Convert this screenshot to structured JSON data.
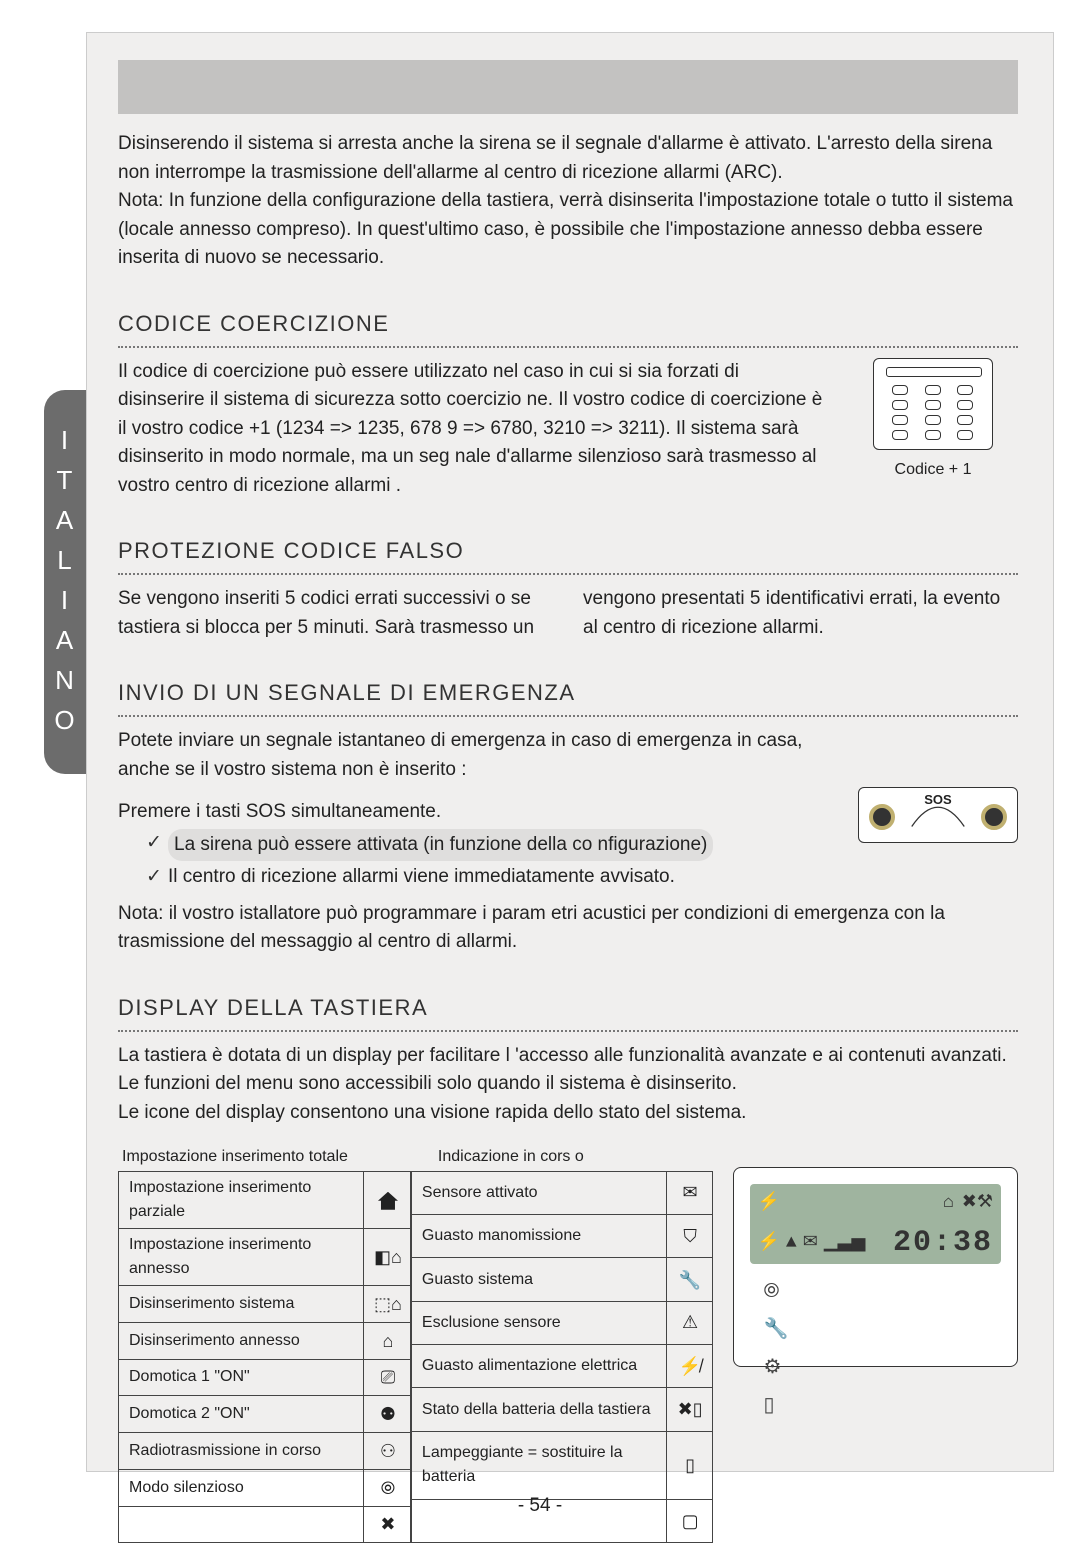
{
  "side_tab_letters": [
    "I",
    "T",
    "A",
    "L",
    "I",
    "A",
    "N",
    "O"
  ],
  "intro_para": "Disinserendo il sistema si arresta anche la sirena se il segnale d'allarme è attivato. L'arresto della sirena non interrompe la trasmissione dell'allarme al centro di ricezione allarmi (ARC).\nNota: In funzione della configurazione della tastiera, verrà disinserita l'impostazione totale o tutto il sistema (locale annesso compreso). In quest'ultimo caso, è possibile che l'impostazione annesso debba essere inserita di nuovo se necessario.",
  "sections": {
    "coercizione": {
      "title": "CODICE COERCIZIONE",
      "body": "Il codice di coercizione può essere utilizzato nel caso in cui si sia forzati di disinserire il sistema di sicurezza sotto coercizio ne. Il vostro codice di coercizione è il vostro codice +1 (1234 => 1235, 678 9 => 6780, 3210 => 3211). Il sistema sarà disinserito in modo normale, ma un seg nale d'allarme silenzioso sarà trasmesso al vostro centro di ricezione allarmi .",
      "caption": "Codice + 1"
    },
    "falso": {
      "title": "PROTEZIONE CODICE FALSO",
      "col1": "Se vengono inseriti 5 codici errati successivi o se tastiera si blocca per 5 minuti. Sarà trasmesso un",
      "col2": "vengono presentati 5 identificativi errati, la evento al centro di ricezione allarmi."
    },
    "emergenza": {
      "title": "INVIO DI UN SEGNALE DI EMERGENZA",
      "intro": "Potete inviare un segnale istantaneo di emergenza in caso di emergenza in casa, anche se il vostro sistema non è inserito :",
      "press": "Premere i tasti SOS simultaneamente.",
      "li1": "La sirena può essere attivata (in funzione della co nfigurazione)",
      "li2": "Il centro di ricezione allarmi viene immediatamente avvisato.",
      "note": "Nota: il vostro istallatore può programmare i param etri acustici per condizioni di emergenza con la trasmissione del messaggio al centro di allarmi.",
      "sos_label": "SOS"
    },
    "display": {
      "title": "DISPLAY DELLA TASTIERA",
      "body": "La tastiera è dotata di un display per facilitare l 'accesso alle funzionalità avanzate e ai contenuti avanzati. Le funzioni del menu sono accessibili solo quando il sistema è disinserito.\nLe icone del display consentono una visione rapida dello stato del sistema.",
      "header_left": "Impostazione inserimento totale",
      "header_right": "Indicazione in cors o",
      "left_rows": [
        {
          "label": "Impostazione inserimento parziale",
          "icon": "house-full"
        },
        {
          "label": "Impostazione inserimento annesso",
          "icon": "house-half"
        },
        {
          "label": "Disinserimento sistema",
          "icon": "house-outline-low"
        },
        {
          "label": "Disinserimento annesso",
          "icon": "house-outline"
        },
        {
          "label": "Domotica 1 \"ON\"",
          "icon": "plug-box"
        },
        {
          "label": "Domotica 2 \"ON\"",
          "icon": "plug1"
        },
        {
          "label": "Radiotrasmissione in corso",
          "icon": "plug2"
        },
        {
          "label": "Modo silenzioso",
          "icon": "waves"
        },
        {
          "label": "",
          "icon": "tool"
        }
      ],
      "right_rows": [
        {
          "label": "Sensore attivato",
          "icon": "✉"
        },
        {
          "label": "Guasto manomissione",
          "icon": "shield"
        },
        {
          "label": "Guasto sistema",
          "icon": "wrench"
        },
        {
          "label": "Esclusione sensore",
          "icon": "⚠"
        },
        {
          "label": "Guasto alimentazione elettrica",
          "icon": "plug-x"
        },
        {
          "label": "Stato della batteria della tastiera",
          "icon": "batt-x"
        },
        {
          "label": "Lampeggiante = sostituire la batteria",
          "icon": "batt"
        },
        {
          "label": "",
          "icon": "sim"
        }
      ],
      "lcd_time": "20:38"
    }
  },
  "page_number": "- 54 -",
  "colors": {
    "page_bg": "#f0efee",
    "header_bar": "#c3c2c1",
    "side_tab": "#6c6c6c",
    "highlight": "#dfdedd",
    "lcd": "#9fb49f",
    "text": "#222222",
    "border": "#444444"
  }
}
